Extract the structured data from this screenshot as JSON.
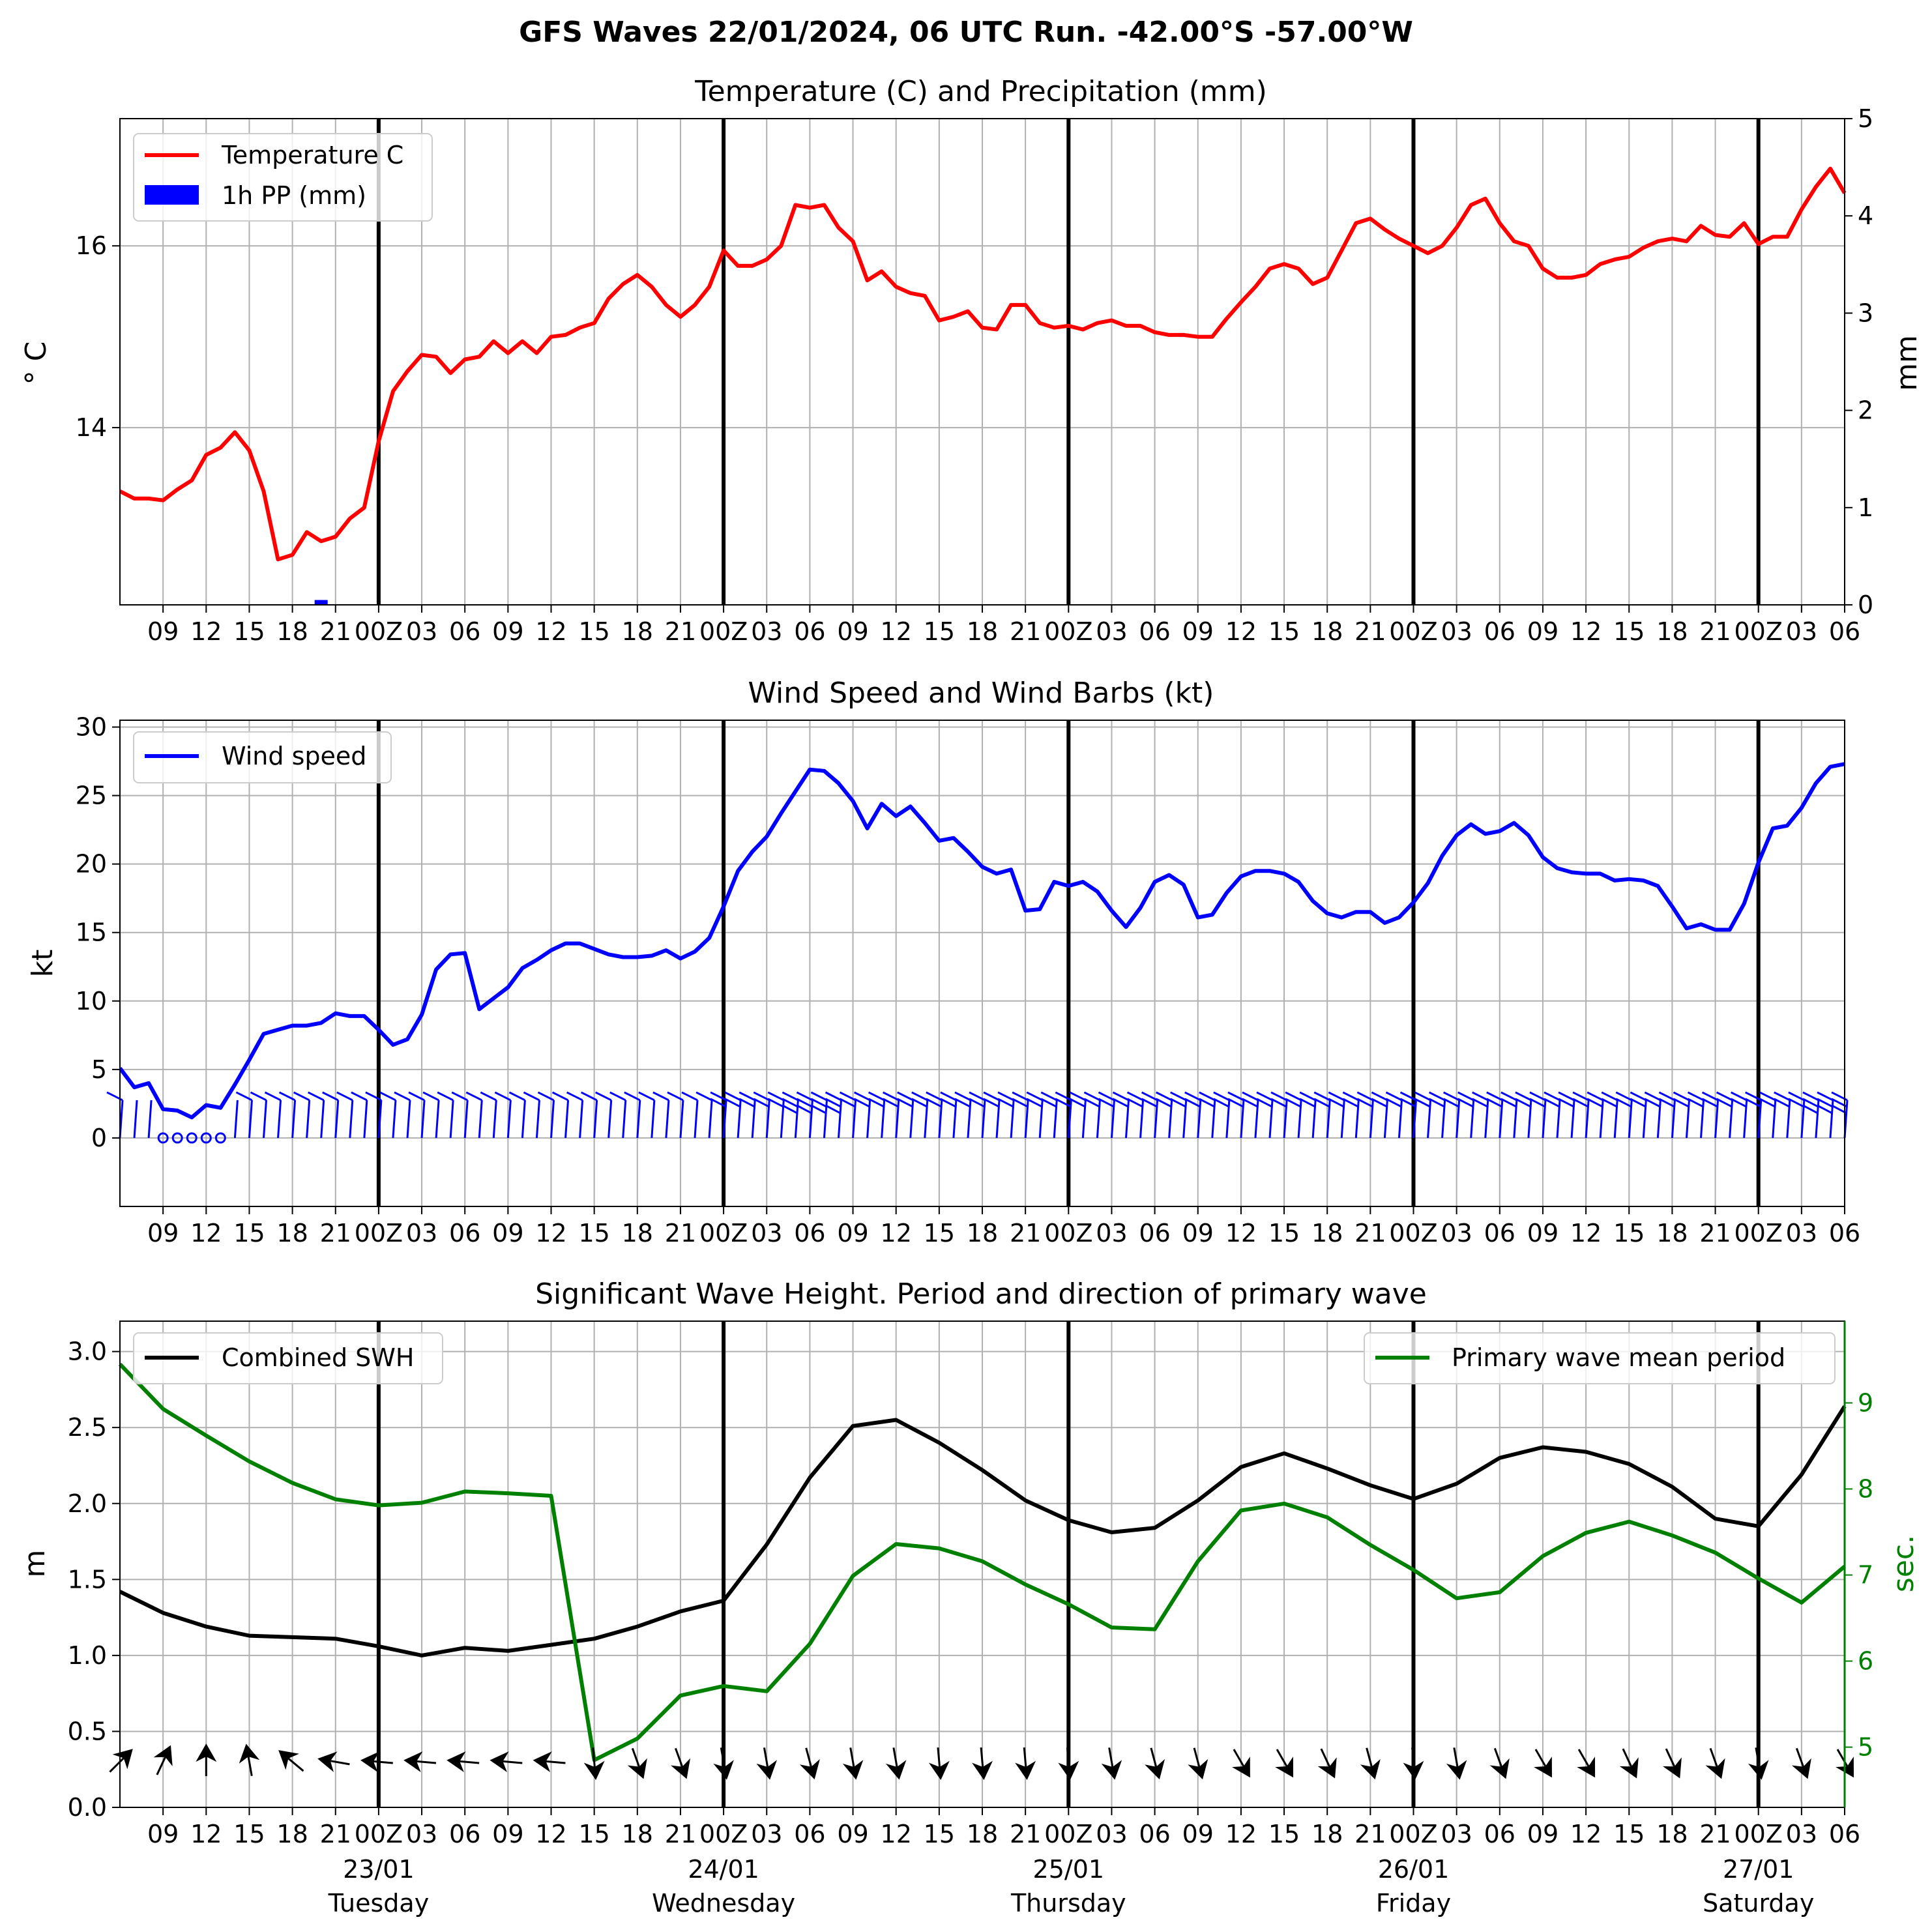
{
  "suptitle": "GFS Waves 22/01/2024, 06 UTC Run. -42.00°S -57.00°W",
  "colors": {
    "temperature": "#ff0000",
    "precip": "#0000ff",
    "wind": "#0000ff",
    "swh": "#000000",
    "period": "#008000",
    "grid": "#b0b0b0",
    "day_line": "#000000"
  },
  "time_axis": {
    "start_hour": 6,
    "end_hour": 126,
    "minor_tick_hours": [
      9,
      12,
      15,
      18,
      21,
      24,
      27,
      30,
      33,
      36,
      39,
      42,
      45,
      48,
      51,
      54,
      57,
      60,
      63,
      66,
      69,
      72,
      75,
      78,
      81,
      84,
      87,
      90,
      93,
      96,
      99,
      102,
      105,
      108,
      111,
      114,
      117,
      120,
      123,
      126
    ],
    "minor_tick_labels": [
      "09",
      "12",
      "15",
      "18",
      "21",
      "00Z",
      "03",
      "06",
      "09",
      "12",
      "15",
      "18",
      "21",
      "00Z",
      "03",
      "06",
      "09",
      "12",
      "15",
      "18",
      "21",
      "00Z",
      "03",
      "06",
      "09",
      "12",
      "15",
      "18",
      "21",
      "00Z",
      "03",
      "06",
      "09",
      "12",
      "15",
      "18",
      "21",
      "00Z",
      "03",
      "06"
    ],
    "day_line_hours": [
      24,
      48,
      72,
      96,
      120
    ],
    "day_labels": [
      {
        "hour": 24,
        "date": "23/01",
        "weekday": "Tuesday"
      },
      {
        "hour": 48,
        "date": "24/01",
        "weekday": "Wednesday"
      },
      {
        "hour": 72,
        "date": "25/01",
        "weekday": "Thursday"
      },
      {
        "hour": 96,
        "date": "26/01",
        "weekday": "Friday"
      },
      {
        "hour": 120,
        "date": "27/01",
        "weekday": "Saturday"
      }
    ]
  },
  "chart_data": [
    {
      "type": "line",
      "title": "Temperature (C) and Precipitation (mm)",
      "ylabel": "$^\\circ$C",
      "ylabel_display": "° C",
      "y2label": "mm",
      "ylim": [
        12.05,
        17.4
      ],
      "y_ticks": [
        14,
        16
      ],
      "y2lim": [
        0,
        5
      ],
      "y2_ticks": [
        0,
        1,
        2,
        3,
        4,
        5
      ],
      "legend": [
        "Temperature C",
        "1h PP (mm)"
      ],
      "legend_position": "upper left",
      "series": [
        {
          "name": "Temperature C",
          "x_hours": [
            6,
            7,
            8,
            9,
            10,
            11,
            12,
            13,
            14,
            15,
            16,
            17,
            18,
            19,
            20,
            21,
            22,
            23,
            24,
            25,
            26,
            27,
            28,
            29,
            30,
            31,
            32,
            33,
            34,
            35,
            36,
            37,
            38,
            39,
            40,
            41,
            42,
            43,
            44,
            45,
            46,
            47,
            48,
            49,
            50,
            51,
            52,
            53,
            54,
            55,
            56,
            57,
            58,
            59,
            60,
            61,
            62,
            63,
            64,
            65,
            66,
            67,
            68,
            69,
            70,
            71,
            72,
            73,
            74,
            75,
            76,
            77,
            78,
            79,
            80,
            81,
            82,
            83,
            84,
            85,
            86,
            87,
            88,
            89,
            90,
            91,
            92,
            93,
            94,
            95,
            96,
            97,
            98,
            99,
            100,
            101,
            102,
            103,
            104,
            105,
            106,
            107,
            108,
            109,
            110,
            111,
            112,
            113,
            114,
            115,
            116,
            117,
            118,
            119,
            120,
            121,
            122,
            123,
            124,
            125,
            126
          ],
          "values": [
            13.3,
            13.22,
            13.22,
            13.2,
            13.32,
            13.42,
            13.7,
            13.78,
            13.95,
            13.75,
            13.3,
            12.55,
            12.6,
            12.85,
            12.75,
            12.8,
            13.0,
            13.12,
            13.85,
            14.4,
            14.62,
            14.8,
            14.78,
            14.6,
            14.75,
            14.78,
            14.95,
            14.82,
            14.95,
            14.82,
            15.0,
            15.02,
            15.1,
            15.15,
            15.42,
            15.58,
            15.68,
            15.55,
            15.35,
            15.22,
            15.35,
            15.55,
            15.95,
            15.78,
            15.78,
            15.85,
            16.0,
            16.45,
            16.42,
            16.45,
            16.2,
            16.05,
            15.62,
            15.72,
            15.55,
            15.48,
            15.45,
            15.18,
            15.22,
            15.28,
            15.1,
            15.08,
            15.35,
            15.35,
            15.15,
            15.1,
            15.12,
            15.08,
            15.15,
            15.18,
            15.12,
            15.12,
            15.05,
            15.02,
            15.02,
            15.0,
            15.0,
            15.2,
            15.38,
            15.55,
            15.75,
            15.8,
            15.75,
            15.58,
            15.65,
            15.95,
            16.25,
            16.3,
            16.18,
            16.08,
            16.0,
            15.92,
            16.0,
            16.2,
            16.45,
            16.52,
            16.25,
            16.05,
            16.0,
            15.75,
            15.65,
            15.65,
            15.68,
            15.8,
            15.85,
            15.88,
            15.98,
            16.05,
            16.08,
            16.05,
            16.22,
            16.12,
            16.1,
            16.25,
            16.02,
            16.1,
            16.1,
            16.4,
            16.65,
            16.85,
            16.58
          ]
        },
        {
          "name": "1h PP (mm)",
          "axis": "right",
          "x_hours": [
            20
          ],
          "values": [
            0.05
          ]
        }
      ]
    },
    {
      "type": "line",
      "title": "Wind Speed and Wind Barbs (kt)",
      "ylabel": "kt",
      "ylim": [
        -5,
        30.5
      ],
      "y_ticks": [
        0,
        5,
        10,
        15,
        20,
        25,
        30
      ],
      "legend": [
        "Wind speed"
      ],
      "legend_position": "upper left",
      "series": [
        {
          "name": "Wind speed",
          "x_hours": [
            6,
            7,
            8,
            9,
            10,
            11,
            12,
            13,
            14,
            15,
            16,
            17,
            18,
            19,
            20,
            21,
            22,
            23,
            24,
            25,
            26,
            27,
            28,
            29,
            30,
            31,
            32,
            33,
            34,
            35,
            36,
            37,
            38,
            39,
            40,
            41,
            42,
            43,
            44,
            45,
            46,
            47,
            48,
            49,
            50,
            51,
            52,
            53,
            54,
            55,
            56,
            57,
            58,
            59,
            60,
            61,
            62,
            63,
            64,
            65,
            66,
            67,
            68,
            69,
            70,
            71,
            72,
            73,
            74,
            75,
            76,
            77,
            78,
            79,
            80,
            81,
            82,
            83,
            84,
            85,
            86,
            87,
            88,
            89,
            90,
            91,
            92,
            93,
            94,
            95,
            96,
            97,
            98,
            99,
            100,
            101,
            102,
            103,
            104,
            105,
            106,
            107,
            108,
            109,
            110,
            111,
            112,
            113,
            114,
            115,
            116,
            117,
            118,
            119,
            120,
            121,
            122,
            123,
            124,
            125,
            126
          ],
          "values": [
            5.1,
            3.7,
            4.0,
            2.1,
            2.0,
            1.5,
            2.4,
            2.2,
            3.9,
            5.7,
            7.6,
            7.9,
            8.2,
            8.2,
            8.4,
            9.1,
            8.9,
            8.9,
            7.9,
            6.8,
            7.2,
            9.0,
            12.3,
            13.4,
            13.5,
            9.4,
            10.2,
            11.0,
            12.4,
            13.0,
            13.7,
            14.2,
            14.2,
            13.8,
            13.4,
            13.2,
            13.2,
            13.3,
            13.7,
            13.1,
            13.6,
            14.6,
            16.9,
            19.5,
            20.9,
            22.0,
            23.7,
            25.3,
            26.9,
            26.8,
            25.9,
            24.6,
            22.6,
            24.4,
            23.5,
            24.2,
            23.0,
            21.7,
            21.9,
            20.9,
            19.8,
            19.3,
            19.6,
            16.6,
            16.7,
            18.7,
            18.4,
            18.7,
            18.0,
            16.6,
            15.4,
            16.8,
            18.7,
            19.2,
            18.5,
            16.1,
            16.3,
            17.9,
            19.1,
            19.5,
            19.5,
            19.3,
            18.7,
            17.3,
            16.4,
            16.1,
            16.5,
            16.5,
            15.7,
            16.1,
            17.2,
            18.6,
            20.6,
            22.1,
            22.9,
            22.2,
            22.4,
            23.0,
            22.1,
            20.5,
            19.7,
            19.4,
            19.3,
            19.3,
            18.8,
            18.9,
            18.8,
            18.4,
            16.9,
            15.3,
            15.6,
            15.2,
            15.2,
            17.1,
            20.1,
            22.6,
            22.8,
            24.1,
            25.9,
            27.1,
            27.3
          ]
        }
      ]
    },
    {
      "type": "line",
      "title": "Significant Wave Height. Period and direction of primary wave",
      "ylabel": "m",
      "y2label": "sec.",
      "ylim": [
        0,
        3.2
      ],
      "y_ticks": [
        0.0,
        0.5,
        1.0,
        1.5,
        2.0,
        2.5,
        3.0
      ],
      "y_tick_labels": [
        "0.0",
        "0.5",
        "1.0",
        "1.5",
        "2.0",
        "2.5",
        "3.0"
      ],
      "y2lim": [
        4.3,
        9.95
      ],
      "y2_ticks": [
        5,
        6,
        7,
        8,
        9
      ],
      "legend": [
        "Combined SWH",
        "Primary wave mean period"
      ],
      "series": [
        {
          "name": "Combined SWH",
          "x_hours": [
            6,
            9,
            12,
            15,
            18,
            21,
            24,
            27,
            30,
            33,
            36,
            39,
            42,
            45,
            48,
            51,
            54,
            57,
            60,
            63,
            66,
            69,
            72,
            75,
            78,
            81,
            84,
            87,
            90,
            93,
            96,
            99,
            102,
            105,
            108,
            111,
            114,
            117,
            120,
            123,
            126
          ],
          "values": [
            1.42,
            1.28,
            1.19,
            1.13,
            1.12,
            1.11,
            1.06,
            1.0,
            1.05,
            1.03,
            1.07,
            1.11,
            1.19,
            1.29,
            1.36,
            1.73,
            2.17,
            2.51,
            2.55,
            2.4,
            2.22,
            2.02,
            1.89,
            1.81,
            1.84,
            2.02,
            2.24,
            2.33,
            2.23,
            2.12,
            2.03,
            2.13,
            2.3,
            2.37,
            2.34,
            2.26,
            2.11,
            1.9,
            1.85,
            2.19,
            2.64
          ]
        },
        {
          "name": "Primary wave mean period",
          "axis": "right",
          "x_hours": [
            6,
            9,
            12,
            15,
            18,
            21,
            24,
            27,
            30,
            33,
            36,
            39,
            42,
            45,
            48,
            51,
            54,
            57,
            60,
            63,
            66,
            69,
            72,
            75,
            78,
            81,
            84,
            87,
            90,
            93,
            96,
            99,
            102,
            105,
            108,
            111,
            114,
            117,
            120,
            123,
            126
          ],
          "values": [
            9.45,
            8.93,
            8.62,
            8.32,
            8.07,
            7.88,
            7.81,
            7.84,
            7.97,
            7.95,
            7.92,
            4.85,
            5.1,
            5.6,
            5.71,
            5.65,
            6.2,
            6.99,
            7.36,
            7.31,
            7.16,
            6.89,
            6.66,
            6.39,
            6.37,
            7.16,
            7.75,
            7.83,
            7.67,
            7.35,
            7.06,
            6.73,
            6.8,
            7.22,
            7.49,
            7.62,
            7.46,
            7.26,
            6.96,
            6.68,
            7.1
          ]
        }
      ],
      "direction_arrows": {
        "x_hours": [
          6,
          9,
          12,
          15,
          18,
          21,
          24,
          27,
          30,
          33,
          36,
          39,
          42,
          45,
          48,
          51,
          54,
          57,
          60,
          63,
          66,
          69,
          72,
          75,
          78,
          81,
          84,
          87,
          90,
          93,
          96,
          99,
          102,
          105,
          108,
          111,
          114,
          117,
          120,
          123,
          126
        ],
        "to_degrees": [
          45,
          25,
          0,
          -10,
          -50,
          -80,
          -85,
          -85,
          -85,
          -85,
          -85,
          175,
          160,
          160,
          170,
          170,
          165,
          170,
          170,
          175,
          175,
          175,
          175,
          170,
          165,
          165,
          150,
          150,
          155,
          165,
          175,
          170,
          160,
          150,
          150,
          155,
          155,
          160,
          170,
          160,
          150
        ]
      }
    }
  ]
}
